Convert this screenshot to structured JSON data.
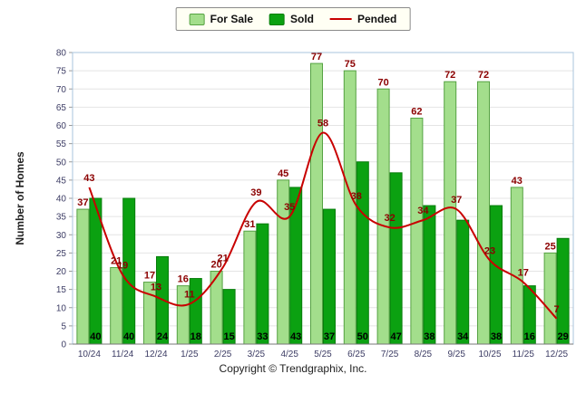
{
  "figure": {
    "ylabel": "Number of Homes",
    "copyright": "Copyright © Trendgraphix, Inc."
  },
  "chart_data": {
    "type": "bar",
    "categories": [
      "10/24",
      "11/24",
      "12/24",
      "1/25",
      "2/25",
      "3/25",
      "4/25",
      "5/25",
      "6/25",
      "7/25",
      "8/25",
      "9/25",
      "10/25",
      "11/25",
      "12/25"
    ],
    "series": [
      {
        "name": "For Sale",
        "type": "bar",
        "color": "#A3DE8C",
        "border": "#56A243",
        "label_color": "#8B0000",
        "values": [
          37,
          21,
          17,
          16,
          20,
          31,
          45,
          77,
          75,
          70,
          62,
          72,
          72,
          43,
          25
        ]
      },
      {
        "name": "Sold",
        "type": "bar",
        "color": "#0BA111",
        "border": "#077D0B",
        "label_color": "#000000",
        "values": [
          40,
          40,
          24,
          18,
          15,
          33,
          43,
          37,
          50,
          47,
          38,
          34,
          38,
          16,
          29
        ]
      },
      {
        "name": "Pended",
        "type": "line",
        "color": "#C80000",
        "label_color": "#8B0000",
        "values": [
          43,
          19,
          13,
          11,
          21,
          39,
          35,
          58,
          38,
          32,
          34,
          37,
          23,
          17,
          7
        ]
      }
    ],
    "title": "",
    "xlabel": "",
    "ylabel": "Number of Homes",
    "ylim": [
      0,
      80
    ],
    "ytick_step": 5,
    "grid": true,
    "legend_position": "top-center"
  }
}
